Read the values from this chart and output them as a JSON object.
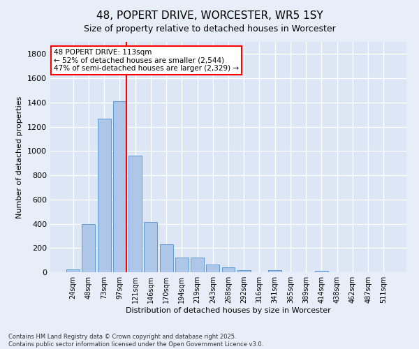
{
  "title": "48, POPERT DRIVE, WORCESTER, WR5 1SY",
  "subtitle": "Size of property relative to detached houses in Worcester",
  "xlabel": "Distribution of detached houses by size in Worcester",
  "ylabel": "Number of detached properties",
  "categories": [
    "24sqm",
    "48sqm",
    "73sqm",
    "97sqm",
    "121sqm",
    "146sqm",
    "170sqm",
    "194sqm",
    "219sqm",
    "243sqm",
    "268sqm",
    "292sqm",
    "316sqm",
    "341sqm",
    "365sqm",
    "389sqm",
    "414sqm",
    "438sqm",
    "462sqm",
    "487sqm",
    "511sqm"
  ],
  "values": [
    25,
    400,
    1265,
    1410,
    960,
    415,
    230,
    120,
    120,
    65,
    42,
    15,
    0,
    18,
    0,
    0,
    12,
    0,
    0,
    0,
    0
  ],
  "bar_color": "#aec6e8",
  "bar_edgecolor": "#5b9bd5",
  "vline_color": "red",
  "annotation_text": "48 POPERT DRIVE: 113sqm\n← 52% of detached houses are smaller (2,544)\n47% of semi-detached houses are larger (2,329) →",
  "annotation_box_color": "white",
  "annotation_box_edgecolor": "red",
  "ylim": [
    0,
    1900
  ],
  "yticks": [
    0,
    200,
    400,
    600,
    800,
    1000,
    1200,
    1400,
    1600,
    1800
  ],
  "footnote": "Contains HM Land Registry data © Crown copyright and database right 2025.\nContains public sector information licensed under the Open Government Licence v3.0.",
  "bg_color": "#e8eef8",
  "plot_bg_color": "#dce6f5",
  "grid_color": "#ffffff",
  "title_fontsize": 11,
  "axis_fontsize": 8,
  "annot_fontsize": 7.5,
  "footnote_fontsize": 6
}
